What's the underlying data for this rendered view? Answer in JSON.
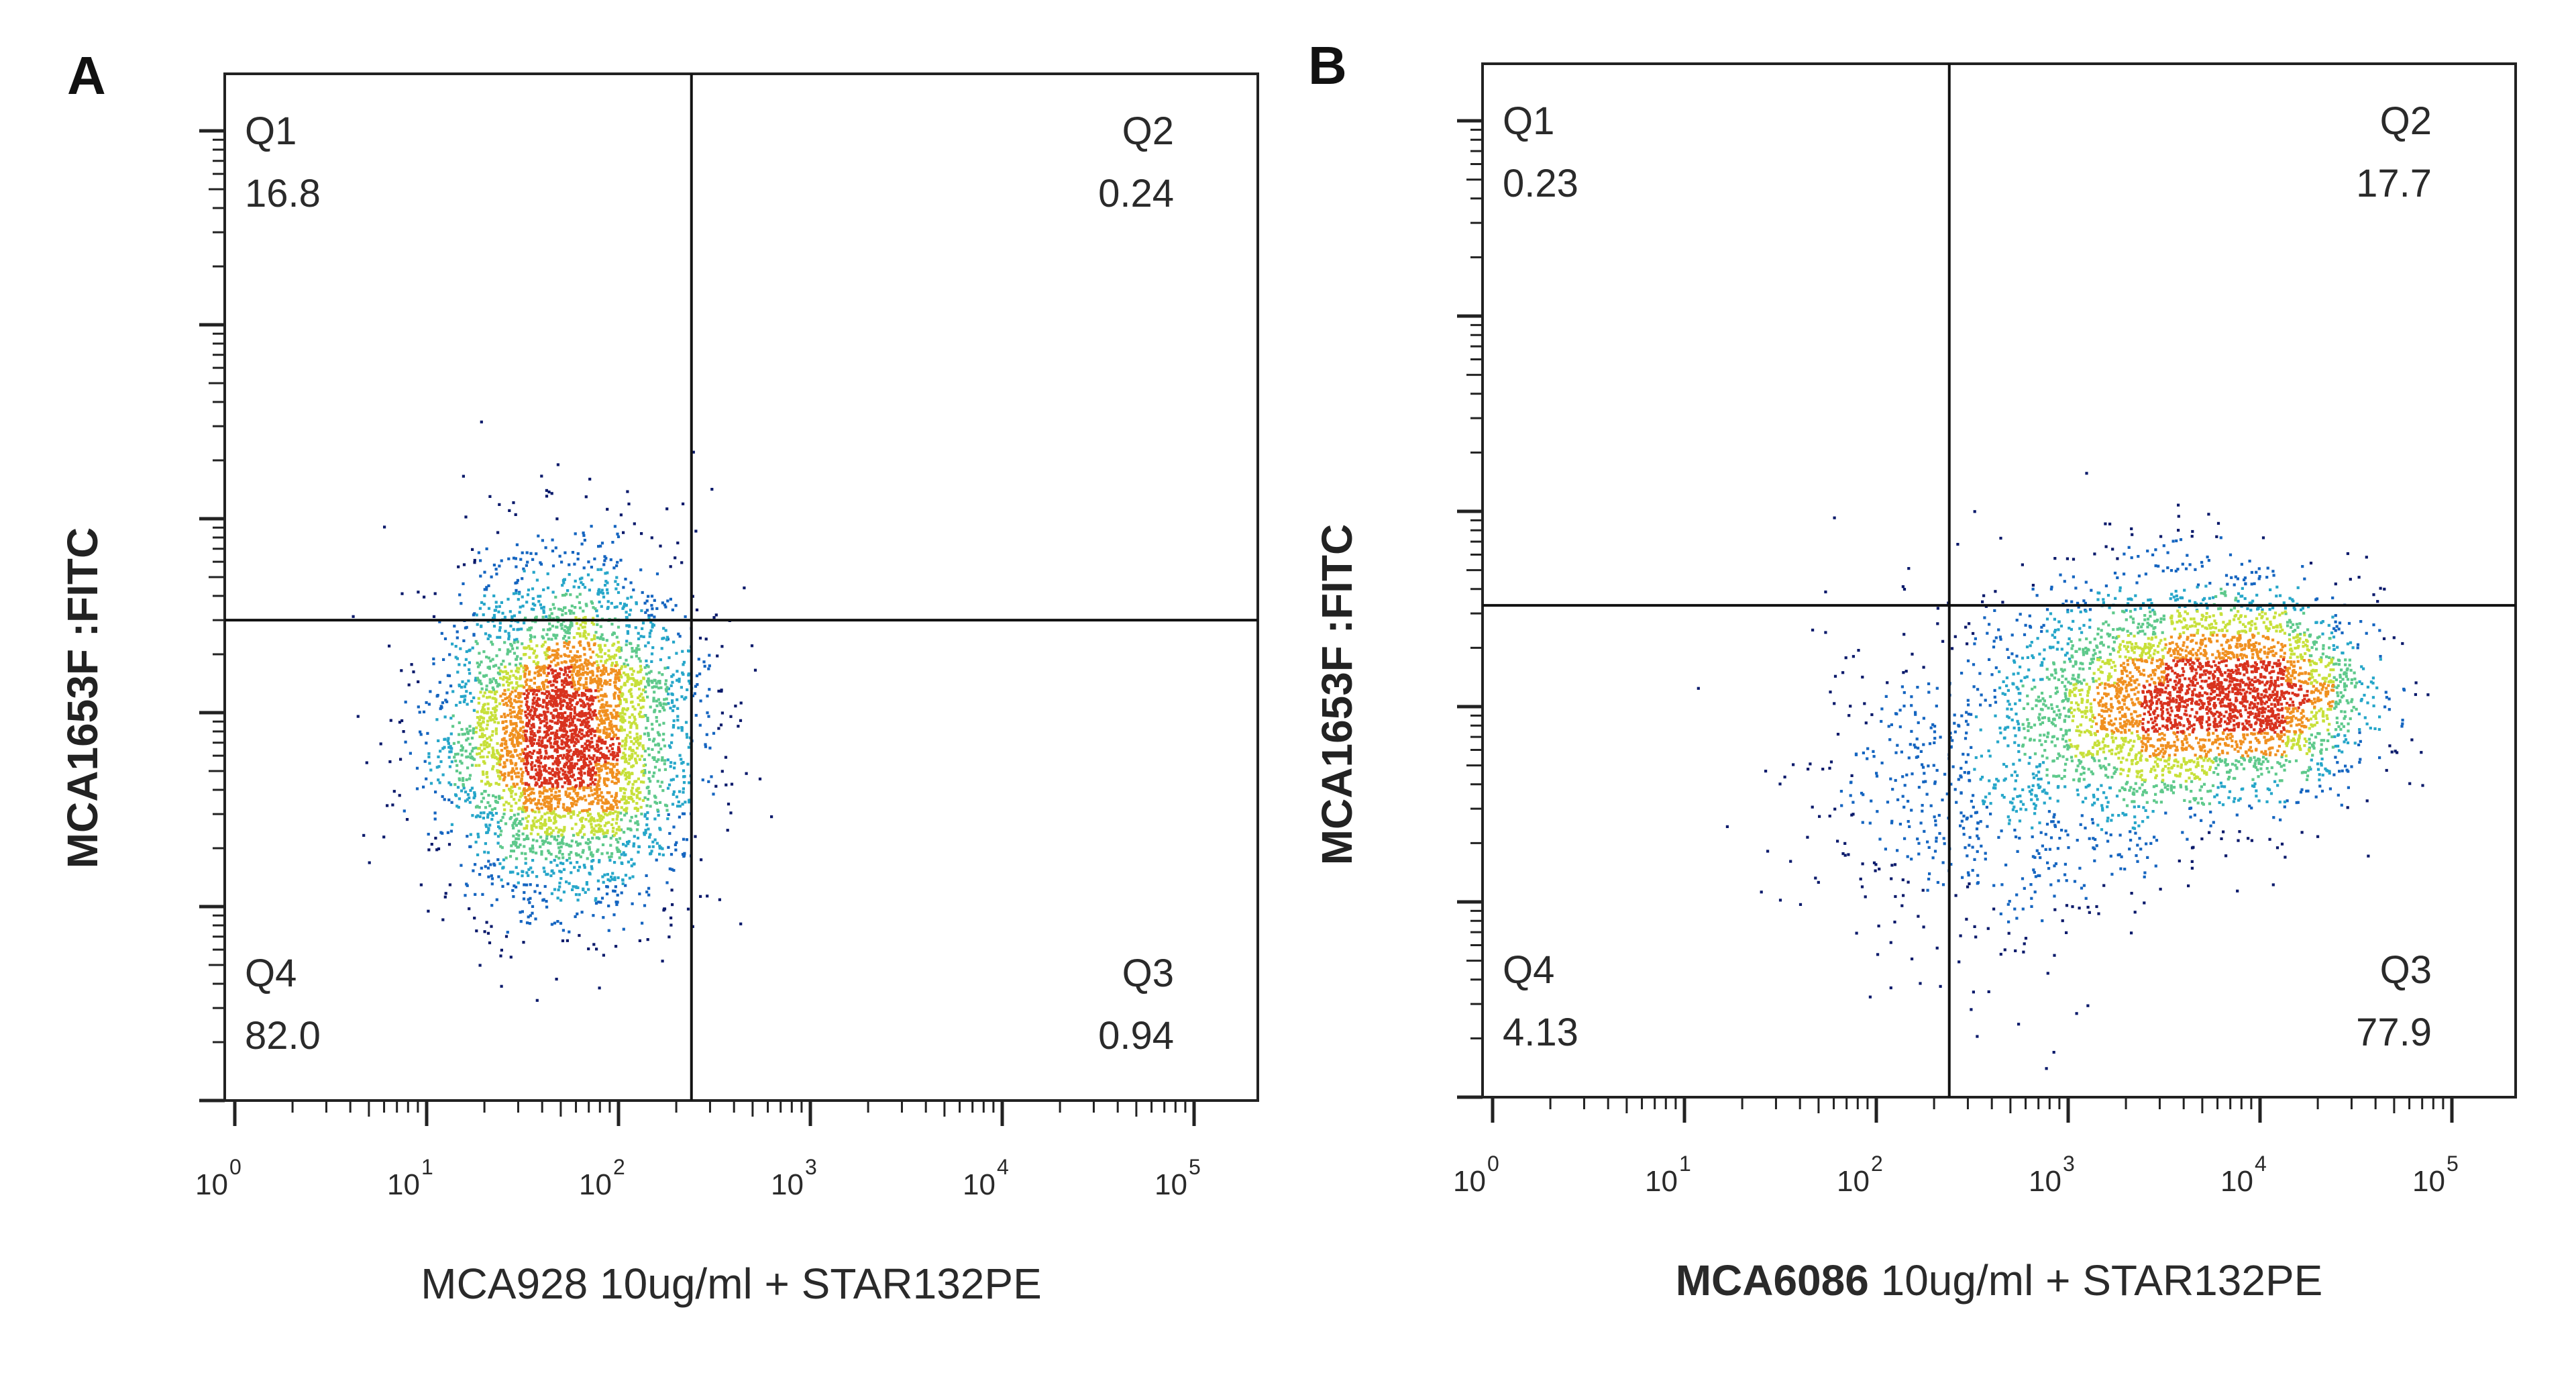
{
  "chart_data": [
    {
      "type": "scatter",
      "panel": "A",
      "xlabel": "MCA928 10ug/ml + STAR132PE",
      "ylabel": "MCA1653F :FITC",
      "x_scale": "log",
      "y_scale": "log",
      "xlim": [
        1,
        100000
      ],
      "ylim": [
        1,
        100000
      ],
      "x_ticks": [
        "10",
        "10",
        "10",
        "10",
        "10",
        "10"
      ],
      "x_tick_exponents": [
        "0",
        "1",
        "2",
        "3",
        "4",
        "5"
      ],
      "gate": {
        "x": 240,
        "y": 300
      },
      "quadrants": [
        {
          "id": "Q1",
          "value": "16.8",
          "position": "top-left"
        },
        {
          "id": "Q2",
          "value": "0.24",
          "position": "top-right"
        },
        {
          "id": "Q3",
          "value": "0.94",
          "position": "bottom-right"
        },
        {
          "id": "Q4",
          "value": "82.0",
          "position": "bottom-left"
        }
      ],
      "populations": [
        {
          "name": "",
          "center_log": [
            1.72,
            1.9
          ],
          "spread_log": [
            0.32,
            0.42
          ],
          "fraction": 1.0
        }
      ],
      "events": 4200,
      "colormap": [
        "#0a1a6b",
        "#1565c0",
        "#26a6c9",
        "#5ec98b",
        "#c7e03a",
        "#f09020",
        "#d8321e"
      ]
    },
    {
      "type": "scatter",
      "panel": "B",
      "xlabel_bold": "MCA6086",
      "xlabel": "10ug/ml + STAR132PE",
      "ylabel": "MCA1653F :FITC",
      "x_scale": "log",
      "y_scale": "log",
      "xlim": [
        1,
        100000
      ],
      "ylim": [
        1,
        100000
      ],
      "x_ticks": [
        "10",
        "10",
        "10",
        "10",
        "10",
        "10"
      ],
      "x_tick_exponents": [
        "0",
        "1",
        "2",
        "3",
        "4",
        "5"
      ],
      "gate": {
        "x": 240,
        "y": 330
      },
      "quadrants": [
        {
          "id": "Q1",
          "value": "0.23",
          "position": "top-left"
        },
        {
          "id": "Q2",
          "value": "17.7",
          "position": "top-right"
        },
        {
          "id": "Q3",
          "value": "77.9",
          "position": "bottom-right"
        },
        {
          "id": "Q4",
          "value": "4.13",
          "position": "bottom-left"
        }
      ],
      "populations": [
        {
          "name": "",
          "center_log": [
            3.55,
            2.05
          ],
          "spread_log": [
            0.42,
            0.32
          ],
          "fraction": 0.62
        },
        {
          "name": "",
          "center_log": [
            4.1,
            2.1
          ],
          "spread_log": [
            0.25,
            0.22
          ],
          "fraction": 0.22
        },
        {
          "name": "",
          "center_log": [
            2.6,
            1.6
          ],
          "spread_log": [
            0.45,
            0.45
          ],
          "fraction": 0.16
        }
      ],
      "events": 4200,
      "colormap": [
        "#0a1a6b",
        "#1565c0",
        "#26a6c9",
        "#5ec98b",
        "#c7e03a",
        "#f09020",
        "#d8321e"
      ]
    }
  ]
}
